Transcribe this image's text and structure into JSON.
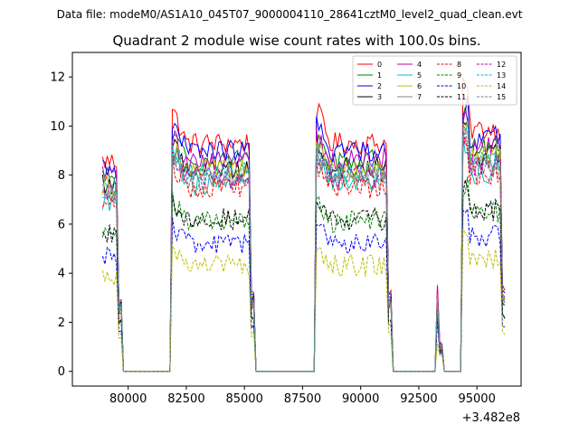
{
  "suptitle": "Data file: modeM0/AS1A10_045T07_9000004110_28641cztM0_level2_quad_clean.evt",
  "chart_data": {
    "type": "line",
    "title": "Quadrant 2 module wise count rates with 100.0s bins.",
    "xlabel": "",
    "ylabel": "",
    "x_offset_text": "+3.482e8",
    "xlim": [
      77600,
      96900
    ],
    "ylim": [
      -0.6,
      13.0
    ],
    "xticks": [
      80000,
      82500,
      85000,
      87500,
      90000,
      92500,
      95000
    ],
    "xtick_labels": [
      "80000",
      "82500",
      "85000",
      "87500",
      "90000",
      "92500",
      "95000"
    ],
    "yticks": [
      0,
      2,
      4,
      6,
      8,
      10,
      12
    ],
    "ytick_labels": [
      "0",
      "2",
      "4",
      "6",
      "8",
      "10",
      "12"
    ],
    "legend_position": "top-right",
    "segments": [
      {
        "start": 78900,
        "end": 79700
      },
      {
        "start": 81900,
        "end": 85400
      },
      {
        "start": 88100,
        "end": 91300
      },
      {
        "start": 93300,
        "end": 93500
      },
      {
        "start": 94400,
        "end": 96200
      }
    ],
    "series": [
      {
        "name": "0",
        "color": "#ff0000",
        "dash": "solid",
        "level": 9.3,
        "first_peak": 10.7
      },
      {
        "name": "1",
        "color": "#008000",
        "dash": "solid",
        "level": 8.6,
        "first_peak": 9.6
      },
      {
        "name": "2",
        "color": "#0000ff",
        "dash": "solid",
        "level": 9.0,
        "first_peak": 10.0
      },
      {
        "name": "3",
        "color": "#000000",
        "dash": "solid",
        "level": 8.3,
        "first_peak": 9.3
      },
      {
        "name": "4",
        "color": "#bf00bf",
        "dash": "solid",
        "level": 8.6,
        "first_peak": 9.6
      },
      {
        "name": "5",
        "color": "#00bfbf",
        "dash": "solid",
        "level": 7.6,
        "first_peak": 8.6
      },
      {
        "name": "6",
        "color": "#bfbf00",
        "dash": "solid",
        "level": 8.2,
        "first_peak": 9.2
      },
      {
        "name": "7",
        "color": "#808080",
        "dash": "solid",
        "level": 8.0,
        "first_peak": 9.0
      },
      {
        "name": "8",
        "color": "#ff0000",
        "dash": "dashed",
        "level": 7.5,
        "first_peak": 8.5
      },
      {
        "name": "9",
        "color": "#008000",
        "dash": "dashed",
        "level": 6.1,
        "first_peak": 7.0
      },
      {
        "name": "10",
        "color": "#0000ff",
        "dash": "dashed",
        "level": 5.2,
        "first_peak": 6.0
      },
      {
        "name": "11",
        "color": "#000000",
        "dash": "dashed",
        "level": 6.2,
        "first_peak": 7.0
      },
      {
        "name": "12",
        "color": "#bf00bf",
        "dash": "dashed",
        "level": 7.9,
        "first_peak": 8.9
      },
      {
        "name": "13",
        "color": "#00bfbf",
        "dash": "dashed",
        "level": 8.1,
        "first_peak": 9.1
      },
      {
        "name": "14",
        "color": "#bfbf00",
        "dash": "dashed",
        "level": 4.3,
        "first_peak": 5.1
      },
      {
        "name": "15",
        "color": "#808080",
        "dash": "dashed",
        "level": 7.8,
        "first_peak": 8.8
      }
    ]
  }
}
